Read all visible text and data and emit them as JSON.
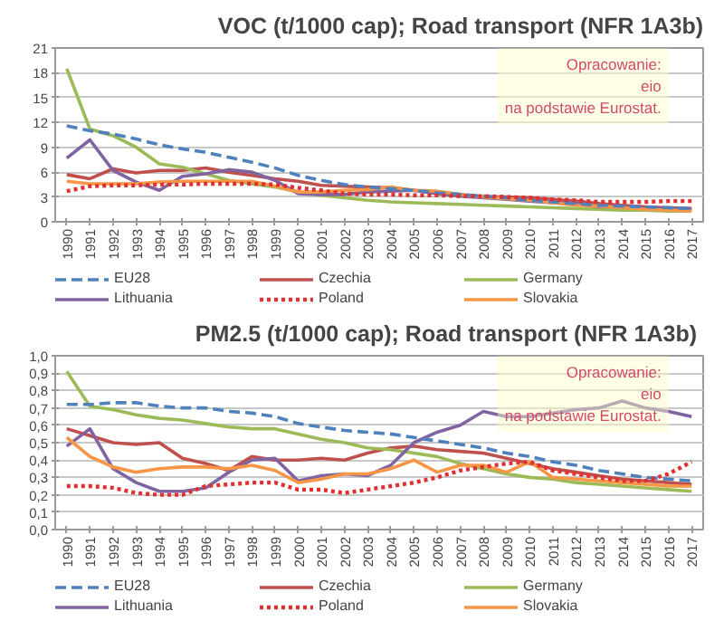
{
  "chart_data": [
    {
      "type": "line",
      "title": "VOC (t/1000 cap); Road transport (NFR 1A3b)",
      "categories": [
        "1990",
        "1991",
        "1992",
        "1993",
        "1994",
        "1995",
        "1996",
        "1997",
        "1998",
        "1999",
        "2000",
        "2001",
        "2002",
        "2003",
        "2004",
        "2005",
        "2006",
        "2007",
        "2008",
        "2009",
        "2010",
        "2011",
        "2012",
        "2013",
        "2014",
        "2015",
        "2016",
        "2017"
      ],
      "series": [
        {
          "name": "EU28",
          "color": "#4f81bd",
          "line_style": "dashed",
          "values": [
            11.6,
            11.0,
            10.6,
            10.0,
            9.3,
            8.8,
            8.4,
            7.8,
            7.2,
            6.5,
            5.6,
            5.0,
            4.5,
            4.2,
            4.0,
            3.8,
            3.5,
            3.3,
            3.1,
            2.9,
            2.6,
            2.4,
            2.2,
            2.0,
            1.9,
            1.8,
            1.7,
            1.6
          ]
        },
        {
          "name": "Czechia",
          "color": "#c0504d",
          "values": [
            5.7,
            5.2,
            6.4,
            5.9,
            6.2,
            6.2,
            6.5,
            6.0,
            5.6,
            5.2,
            4.9,
            4.4,
            4.3,
            4.2,
            4.1,
            3.8,
            3.6,
            3.3,
            3.0,
            3.0,
            2.9,
            2.7,
            2.5,
            2.2,
            2.0,
            1.8,
            1.7,
            1.6
          ]
        },
        {
          "name": "Germany",
          "color": "#9bbb59",
          "values": [
            18.5,
            11.2,
            10.4,
            9.0,
            7.0,
            6.6,
            5.8,
            5.0,
            4.6,
            4.2,
            3.6,
            3.2,
            2.9,
            2.6,
            2.4,
            2.3,
            2.2,
            2.1,
            2.0,
            1.9,
            1.8,
            1.7,
            1.6,
            1.5,
            1.4,
            1.4,
            1.3,
            1.3
          ]
        },
        {
          "name": "Lithuania",
          "color": "#8064a2",
          "values": [
            7.7,
            9.9,
            6.2,
            4.8,
            3.8,
            5.5,
            5.8,
            6.3,
            6.0,
            5.0,
            3.4,
            3.3,
            3.3,
            3.6,
            3.7,
            3.8,
            3.4,
            3.1,
            2.9,
            2.7,
            2.5,
            2.3,
            2.2,
            1.8,
            1.8,
            1.6,
            1.7,
            1.5
          ]
        },
        {
          "name": "Poland",
          "color": "#e03030",
          "line_style": "dotted",
          "values": [
            3.7,
            4.3,
            4.4,
            4.4,
            4.5,
            4.5,
            4.6,
            4.6,
            4.6,
            4.5,
            4.1,
            3.8,
            3.4,
            3.3,
            3.3,
            3.2,
            3.2,
            3.1,
            3.1,
            3.0,
            2.9,
            2.7,
            2.6,
            2.4,
            2.4,
            2.4,
            2.5,
            2.5
          ]
        },
        {
          "name": "Slovakia",
          "color": "#f79646",
          "values": [
            4.9,
            4.6,
            4.6,
            4.6,
            4.8,
            4.9,
            4.9,
            4.9,
            4.9,
            4.3,
            3.6,
            3.6,
            3.8,
            3.9,
            4.2,
            3.8,
            3.7,
            3.3,
            3.0,
            2.8,
            2.6,
            2.3,
            2.0,
            1.9,
            1.7,
            1.5,
            1.4,
            1.3
          ]
        }
      ],
      "ylim": [
        0,
        21
      ],
      "yticks": [
        0,
        3,
        6,
        9,
        12,
        15,
        18,
        21
      ],
      "grid": "y",
      "legend": "bottom",
      "annotations": [
        "Opracowanie:\neio\nna podstawie Eurostat."
      ]
    },
    {
      "type": "line",
      "title": "PM2.5 (t/1000 cap);  Road transport (NFR 1A3b)",
      "categories": [
        "1990",
        "1991",
        "1992",
        "1993",
        "1994",
        "1995",
        "1996",
        "1997",
        "1998",
        "1999",
        "2000",
        "2001",
        "2002",
        "2003",
        "2004",
        "2005",
        "2006",
        "2007",
        "2008",
        "2009",
        "2010",
        "2011",
        "2012",
        "2013",
        "2014",
        "2015",
        "2016",
        "2017"
      ],
      "series": [
        {
          "name": "EU28",
          "color": "#4f81bd",
          "line_style": "dashed",
          "values": [
            0.72,
            0.72,
            0.73,
            0.73,
            0.71,
            0.7,
            0.7,
            0.68,
            0.67,
            0.65,
            0.61,
            0.59,
            0.57,
            0.56,
            0.55,
            0.53,
            0.51,
            0.49,
            0.47,
            0.44,
            0.42,
            0.39,
            0.37,
            0.34,
            0.32,
            0.3,
            0.29,
            0.28
          ]
        },
        {
          "name": "Czechia",
          "color": "#c0504d",
          "values": [
            0.58,
            0.54,
            0.5,
            0.49,
            0.5,
            0.41,
            0.38,
            0.34,
            0.42,
            0.4,
            0.4,
            0.41,
            0.4,
            0.44,
            0.47,
            0.48,
            0.46,
            0.45,
            0.44,
            0.41,
            0.38,
            0.35,
            0.33,
            0.31,
            0.29,
            0.28,
            0.27,
            0.26
          ]
        },
        {
          "name": "Germany",
          "color": "#9bbb59",
          "values": [
            0.91,
            0.71,
            0.69,
            0.66,
            0.64,
            0.63,
            0.61,
            0.59,
            0.58,
            0.58,
            0.55,
            0.52,
            0.5,
            0.47,
            0.46,
            0.44,
            0.42,
            0.38,
            0.35,
            0.32,
            0.3,
            0.29,
            0.27,
            0.26,
            0.25,
            0.24,
            0.23,
            0.22
          ]
        },
        {
          "name": "Lithuania",
          "color": "#8064a2",
          "values": [
            0.48,
            0.58,
            0.35,
            0.27,
            0.22,
            0.22,
            0.24,
            0.33,
            0.4,
            0.41,
            0.28,
            0.31,
            0.32,
            0.31,
            0.37,
            0.5,
            0.56,
            0.6,
            0.68,
            0.65,
            0.65,
            0.67,
            0.69,
            0.7,
            0.74,
            0.7,
            0.68,
            0.65
          ]
        },
        {
          "name": "Poland",
          "color": "#e03030",
          "line_style": "dotted",
          "values": [
            0.25,
            0.25,
            0.24,
            0.21,
            0.2,
            0.2,
            0.25,
            0.26,
            0.27,
            0.27,
            0.23,
            0.23,
            0.21,
            0.23,
            0.25,
            0.27,
            0.3,
            0.34,
            0.36,
            0.38,
            0.39,
            0.34,
            0.32,
            0.3,
            0.28,
            0.28,
            0.32,
            0.39
          ]
        },
        {
          "name": "Slovakia",
          "color": "#f79646",
          "values": [
            0.53,
            0.42,
            0.36,
            0.33,
            0.35,
            0.36,
            0.36,
            0.35,
            0.37,
            0.34,
            0.27,
            0.29,
            0.32,
            0.32,
            0.35,
            0.4,
            0.33,
            0.37,
            0.37,
            0.33,
            0.39,
            0.3,
            0.29,
            0.28,
            0.27,
            0.26,
            0.25,
            0.25
          ]
        }
      ],
      "ylim": [
        0,
        1
      ],
      "yticks": [
        {
          "value": 0,
          "label": "0,0"
        },
        {
          "value": 0.1,
          "label": "0,1"
        },
        {
          "value": 0.2,
          "label": "0,2"
        },
        {
          "value": 0.3,
          "label": "0,3"
        },
        {
          "value": 0.4,
          "label": "0,4"
        },
        {
          "value": 0.5,
          "label": "0,5"
        },
        {
          "value": 0.6,
          "label": "0,6"
        },
        {
          "value": 0.7,
          "label": "0,7"
        },
        {
          "value": 0.8,
          "label": "0,8"
        },
        {
          "value": 0.9,
          "label": "0,9"
        },
        {
          "value": 1,
          "label": "1,0"
        }
      ],
      "grid": "y",
      "legend": "bottom",
      "annotations": [
        "Opracowanie:\neio\nna podstawie Eurostat."
      ]
    }
  ]
}
